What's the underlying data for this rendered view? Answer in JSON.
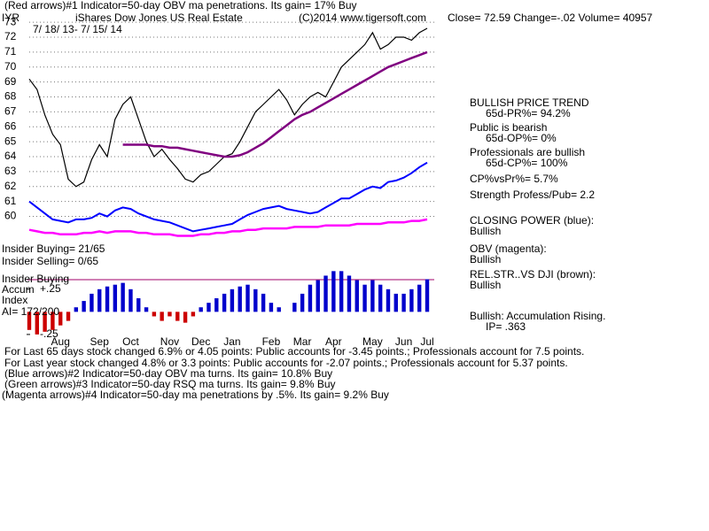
{
  "chart_data": [
    {
      "type": "line",
      "header": "(Red arrows)#1 Indicator=50-day OBV ma penetrations.  Its gain= 17% Buy",
      "symbol": "IYR",
      "title": "iShares Dow Jones US Real Estate",
      "copyright": "(C)2014 www.tigersoft.com",
      "quote": "Close=  72.59  Change=-.02 Volume= 40957",
      "date_range": "7/ 18/ 13- 7/ 15/ 14",
      "categories": [
        null,
        null,
        null,
        null,
        "Aug",
        null,
        null,
        null,
        null,
        "Sep",
        null,
        null,
        null,
        "Oct",
        null,
        null,
        null,
        null,
        "Nov",
        null,
        null,
        null,
        "Dec",
        null,
        null,
        null,
        "Jan",
        null,
        null,
        null,
        null,
        "Feb",
        null,
        null,
        null,
        "Mar",
        null,
        null,
        null,
        "Apr",
        null,
        null,
        null,
        null,
        "May",
        null,
        null,
        null,
        "Jun",
        null,
        null,
        "Jul"
      ],
      "ylim": [
        57.9,
        73.6
      ],
      "yticks": [
        60,
        61,
        62,
        63,
        64,
        65,
        66,
        67,
        68,
        69,
        70,
        71,
        72,
        73
      ],
      "grid": true,
      "series": [
        {
          "color": "#000000",
          "values": [
            69.2,
            68.5,
            66.8,
            65.5,
            64.8,
            62.5,
            62.0,
            62.3,
            63.8,
            64.8,
            64.0,
            66.5,
            67.5,
            68.0,
            66.5,
            65.0,
            64.0,
            64.5,
            63.8,
            63.2,
            62.5,
            62.3,
            62.8,
            63.0,
            63.5,
            64.0,
            64.2,
            65.0,
            66.0,
            67.0,
            67.5,
            68.0,
            68.5,
            67.8,
            66.8,
            67.5,
            68.0,
            68.3,
            68.0,
            69.0,
            70.0,
            70.5,
            71.0,
            71.5,
            72.3,
            71.2,
            71.5,
            72.0,
            72.0,
            71.8,
            72.3,
            72.59
          ]
        },
        {
          "color": "#800080",
          "values": [
            null,
            null,
            null,
            null,
            null,
            null,
            null,
            null,
            null,
            null,
            null,
            null,
            64.8,
            64.8,
            64.8,
            64.8,
            64.7,
            64.7,
            64.6,
            64.6,
            64.5,
            64.4,
            64.3,
            64.2,
            64.1,
            64.0,
            64.0,
            64.1,
            64.3,
            64.6,
            64.9,
            65.3,
            65.7,
            66.1,
            66.5,
            66.8,
            67.0,
            67.3,
            67.6,
            67.9,
            68.2,
            68.5,
            68.8,
            69.1,
            69.4,
            69.7,
            70.0,
            70.2,
            70.4,
            70.6,
            70.8,
            71.0
          ]
        },
        {
          "color": "#0000ff",
          "values": [
            61.0,
            60.6,
            60.2,
            59.8,
            59.7,
            59.6,
            59.8,
            59.8,
            59.9,
            60.2,
            60.0,
            60.4,
            60.6,
            60.5,
            60.2,
            60.0,
            59.8,
            59.7,
            59.6,
            59.4,
            59.2,
            59.0,
            59.1,
            59.2,
            59.3,
            59.4,
            59.5,
            59.8,
            60.1,
            60.3,
            60.5,
            60.6,
            60.7,
            60.5,
            60.4,
            60.3,
            60.2,
            60.3,
            60.6,
            60.9,
            61.2,
            61.2,
            61.5,
            61.8,
            62.0,
            61.9,
            62.3,
            62.4,
            62.6,
            62.9,
            63.3,
            63.6
          ]
        },
        {
          "color": "#ff00ff",
          "values": [
            59.1,
            59.0,
            58.9,
            58.9,
            58.8,
            58.8,
            58.8,
            58.9,
            58.9,
            59.0,
            58.9,
            59.0,
            59.0,
            59.0,
            58.9,
            58.9,
            58.8,
            58.8,
            58.8,
            58.7,
            58.7,
            58.7,
            58.8,
            58.8,
            58.9,
            58.9,
            59.0,
            59.0,
            59.1,
            59.1,
            59.2,
            59.2,
            59.2,
            59.2,
            59.3,
            59.3,
            59.3,
            59.3,
            59.4,
            59.4,
            59.4,
            59.4,
            59.5,
            59.5,
            59.5,
            59.5,
            59.6,
            59.6,
            59.6,
            59.7,
            59.7,
            59.8
          ]
        }
      ],
      "annotations": [
        "BULLISH PRICE TREND",
        "65d-PR%= 94.2%",
        "Public is bearish",
        "65d-OP%= 0%",
        "Professionals are bullish",
        "65d-CP%= 100%",
        "CP%vsPr%=   5.7%",
        "Strength Profess/Pub= 2.2",
        "CLOSING POWER (blue):",
        "Bullish",
        "OBV (magenta):",
        "Bullish",
        "REL.STR..VS DJI (brown):",
        "Bullish",
        "Bullish: Accumulation Rising.",
        "IP=   .363",
        "Insider Buying= 21/65",
        "Insider Selling= 0/65",
        "Insider Buying",
        "Accum",
        "Index",
        "AI= 172/200",
        "For Last 65 days stock changed  6.9% or  4.05 points:  Public accounts for -3.45 points.;  Professionals account for  7.5 points.",
        "For Last year stock changed  4.8% or  3.3 points:  Public accounts for -2.07 points.;  Professionals account for  5.37 points.",
        "(Blue arrows)#2 Indicator=50-day OBV ma turns.  Its gain= 10.8% Buy",
        "(Green arrows)#3 Indicator=50-day RSQ ma turns.  Its gain= 9.8% Buy",
        "(Magenta arrows)#4 Indicator=50-day ma penetrations by .5%.  Its gain= 9.2% Buy"
      ]
    },
    {
      "type": "bar",
      "color": "#0000cc",
      "negative_color": "#cc0000",
      "ylim": [
        -0.29,
        0.61
      ],
      "yticks": [
        {
          "value": 0.25,
          "label": "+.25"
        },
        {
          "value": -0.25,
          "label": "-.25"
        }
      ],
      "values": [
        -0.2,
        -0.25,
        -0.22,
        -0.2,
        -0.15,
        -0.1,
        0.05,
        0.12,
        0.2,
        0.25,
        0.28,
        0.3,
        0.32,
        0.25,
        0.15,
        0.05,
        -0.05,
        -0.1,
        -0.05,
        -0.1,
        -0.12,
        -0.05,
        0.05,
        0.1,
        0.15,
        0.2,
        0.25,
        0.28,
        0.3,
        0.25,
        0.2,
        0.1,
        0.05,
        0.0,
        0.1,
        0.2,
        0.3,
        0.35,
        0.4,
        0.45,
        0.45,
        0.4,
        0.35,
        0.3,
        0.35,
        0.3,
        0.25,
        0.2,
        0.2,
        0.25,
        0.3,
        0.36
      ]
    }
  ]
}
